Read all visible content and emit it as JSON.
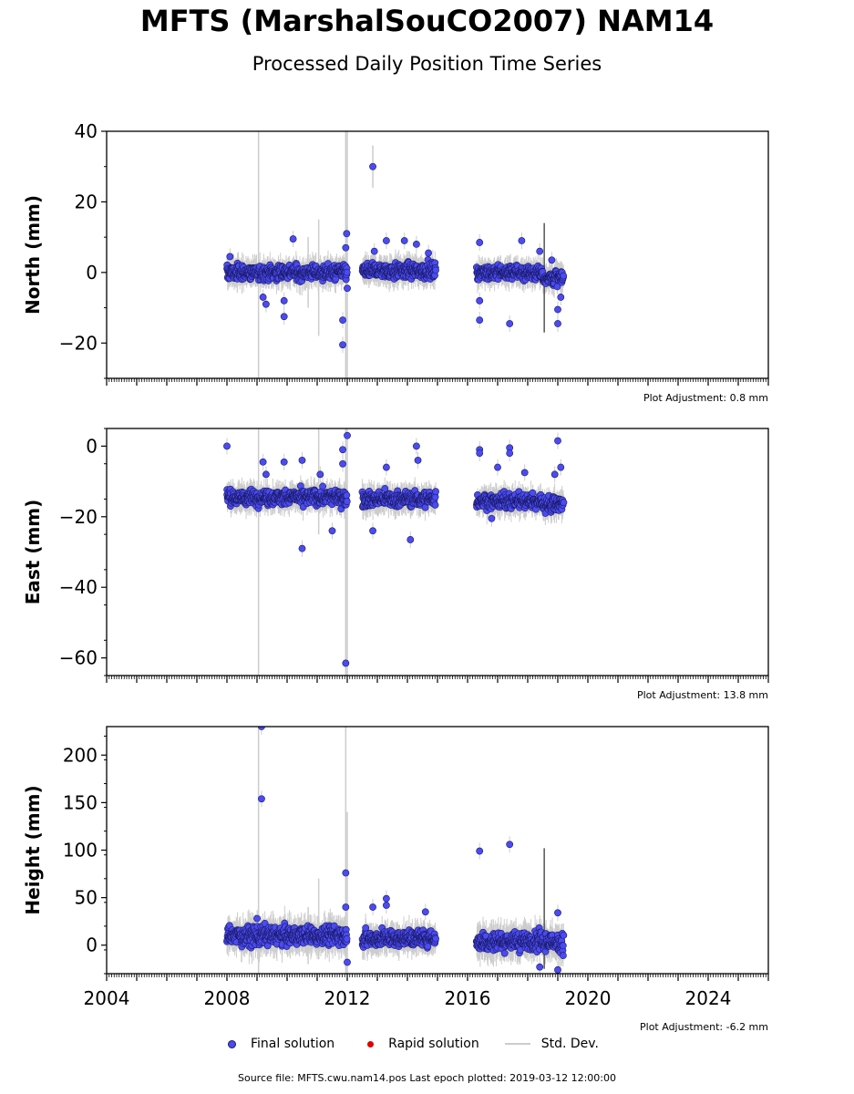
{
  "header": {
    "title": "MFTS (MarshalSouCO2007) NAM14",
    "subtitle": "Processed Daily Position Time Series"
  },
  "legend": {
    "final_label": "Final solution",
    "rapid_label": "Rapid solution",
    "stddev_label": "Std. Dev."
  },
  "footer": {
    "source_text": "Source file: MFTS.cwu.nam14.pos  Last epoch plotted: 2019-03-12 12:00:00"
  },
  "colors": {
    "final": "#4b4bf2",
    "final_edge": "#1a1a66",
    "rapid": "#e00000",
    "stddev": "#cccccc",
    "stddev_dark": "#555555"
  },
  "chart_data": [
    {
      "type": "scatter",
      "ylabel": "North (mm)",
      "xlim": [
        2004,
        2026
      ],
      "ylim": [
        -30,
        40
      ],
      "yticks": [
        -20,
        0,
        20,
        40
      ],
      "adjustment": "Plot Adjustment: 0.8 mm",
      "segments": [
        {
          "start": 2008.0,
          "end": 2012.0,
          "mean": 0,
          "spread": 1.5
        },
        {
          "start": 2012.5,
          "end": 2014.95,
          "mean": 0.5,
          "spread": 1.5
        },
        {
          "start": 2016.3,
          "end": 2018.5,
          "mean": 0,
          "spread": 1.4
        },
        {
          "start": 2018.5,
          "end": 2019.2,
          "mean": -1.5,
          "spread": 1.5
        }
      ],
      "outliers": [
        {
          "x": 2008.1,
          "y": 4.5
        },
        {
          "x": 2009.2,
          "y": -7.0
        },
        {
          "x": 2009.3,
          "y": -9.0
        },
        {
          "x": 2009.9,
          "y": -8.0
        },
        {
          "x": 2009.9,
          "y": -12.5
        },
        {
          "x": 2010.2,
          "y": 9.5
        },
        {
          "x": 2011.85,
          "y": -13.5
        },
        {
          "x": 2011.85,
          "y": -20.5
        },
        {
          "x": 2011.95,
          "y": 7.0
        },
        {
          "x": 2011.98,
          "y": 11.0
        },
        {
          "x": 2012.0,
          "y": -4.5
        },
        {
          "x": 2012.85,
          "y": 30.0
        },
        {
          "x": 2012.9,
          "y": 6.0
        },
        {
          "x": 2013.3,
          "y": 9.0
        },
        {
          "x": 2013.9,
          "y": 9.0
        },
        {
          "x": 2014.3,
          "y": 8.0
        },
        {
          "x": 2014.7,
          "y": 5.5
        },
        {
          "x": 2016.4,
          "y": 8.5
        },
        {
          "x": 2016.4,
          "y": -8.0
        },
        {
          "x": 2016.4,
          "y": -13.5
        },
        {
          "x": 2017.4,
          "y": -14.5
        },
        {
          "x": 2017.8,
          "y": 9.0
        },
        {
          "x": 2018.4,
          "y": 6.0
        },
        {
          "x": 2018.8,
          "y": 3.5
        },
        {
          "x": 2019.0,
          "y": -10.5
        },
        {
          "x": 2019.0,
          "y": -14.5
        },
        {
          "x": 2019.1,
          "y": -7.0
        }
      ],
      "stddev_bars": [
        {
          "x": 2009.05,
          "low": -30,
          "high": 40
        },
        {
          "x": 2011.95,
          "low": -30,
          "high": 40
        },
        {
          "x": 2012.0,
          "low": -30,
          "high": 40
        },
        {
          "x": 2011.05,
          "low": -18,
          "high": 15
        },
        {
          "x": 2010.7,
          "low": -10,
          "high": 10
        },
        {
          "x": 2012.85,
          "low": 24,
          "high": 36
        }
      ],
      "dark_bars": [
        {
          "x": 2018.55,
          "low": -17,
          "high": 14
        }
      ]
    },
    {
      "type": "scatter",
      "ylabel": "East (mm)",
      "xlim": [
        2004,
        2026
      ],
      "ylim": [
        -65,
        5
      ],
      "yticks": [
        -60,
        -40,
        -20,
        0
      ],
      "adjustment": "Plot Adjustment: 13.8 mm",
      "segments": [
        {
          "start": 2008.0,
          "end": 2012.0,
          "mean": -14.5,
          "spread": 1.5
        },
        {
          "start": 2012.5,
          "end": 2014.95,
          "mean": -15,
          "spread": 1.5
        },
        {
          "start": 2016.3,
          "end": 2018.5,
          "mean": -15.5,
          "spread": 1.5
        },
        {
          "start": 2018.5,
          "end": 2019.2,
          "mean": -16.5,
          "spread": 1.5
        }
      ],
      "outliers": [
        {
          "x": 2008.0,
          "y": 0.0
        },
        {
          "x": 2009.2,
          "y": -4.5
        },
        {
          "x": 2009.3,
          "y": -8.0
        },
        {
          "x": 2009.9,
          "y": -4.5
        },
        {
          "x": 2010.5,
          "y": -29.0
        },
        {
          "x": 2010.5,
          "y": -4.0
        },
        {
          "x": 2011.1,
          "y": -8.0
        },
        {
          "x": 2011.5,
          "y": -24.0
        },
        {
          "x": 2011.85,
          "y": -5.0
        },
        {
          "x": 2011.85,
          "y": -1.0
        },
        {
          "x": 2011.95,
          "y": -61.5
        },
        {
          "x": 2012.0,
          "y": 3.0
        },
        {
          "x": 2012.85,
          "y": -24.0
        },
        {
          "x": 2013.3,
          "y": -6.0
        },
        {
          "x": 2014.1,
          "y": -26.5
        },
        {
          "x": 2014.3,
          "y": 0.0
        },
        {
          "x": 2014.35,
          "y": -4.0
        },
        {
          "x": 2016.4,
          "y": -1.0
        },
        {
          "x": 2016.4,
          "y": -2.0
        },
        {
          "x": 2016.8,
          "y": -20.5
        },
        {
          "x": 2017.0,
          "y": -6.0
        },
        {
          "x": 2017.4,
          "y": -0.5
        },
        {
          "x": 2017.4,
          "y": -2.0
        },
        {
          "x": 2017.9,
          "y": -7.5
        },
        {
          "x": 2018.9,
          "y": -8.0
        },
        {
          "x": 2019.0,
          "y": 1.5
        },
        {
          "x": 2019.1,
          "y": -6.0
        }
      ],
      "stddev_bars": [
        {
          "x": 2009.05,
          "low": -65,
          "high": 5
        },
        {
          "x": 2011.95,
          "low": -65,
          "high": 5
        },
        {
          "x": 2012.0,
          "low": -65,
          "high": 5
        },
        {
          "x": 2011.05,
          "low": -25,
          "high": 5
        }
      ],
      "dark_bars": []
    },
    {
      "type": "scatter",
      "ylabel": "Height (mm)",
      "xlim": [
        2004,
        2026
      ],
      "ylim": [
        -30,
        230
      ],
      "yticks": [
        0,
        50,
        100,
        150,
        200
      ],
      "xticks": [
        2004,
        2008,
        2012,
        2016,
        2020,
        2024
      ],
      "adjustment": "Plot Adjustment: -6.2 mm",
      "segments": [
        {
          "start": 2008.0,
          "end": 2012.0,
          "mean": 10,
          "spread": 7
        },
        {
          "start": 2012.5,
          "end": 2014.95,
          "mean": 7,
          "spread": 6
        },
        {
          "start": 2016.3,
          "end": 2018.5,
          "mean": 4,
          "spread": 7
        },
        {
          "start": 2018.5,
          "end": 2019.2,
          "mean": 3,
          "spread": 7
        }
      ],
      "outliers": [
        {
          "x": 2009.15,
          "y": 230.0
        },
        {
          "x": 2009.15,
          "y": 154.0
        },
        {
          "x": 2011.95,
          "y": 76.0
        },
        {
          "x": 2011.95,
          "y": 40.0
        },
        {
          "x": 2012.0,
          "y": -18.0
        },
        {
          "x": 2012.85,
          "y": 40.0
        },
        {
          "x": 2013.3,
          "y": 49.0
        },
        {
          "x": 2013.3,
          "y": 42.0
        },
        {
          "x": 2014.6,
          "y": 35.0
        },
        {
          "x": 2016.4,
          "y": 99.0
        },
        {
          "x": 2017.4,
          "y": 106.0
        },
        {
          "x": 2018.4,
          "y": -23.0
        },
        {
          "x": 2019.0,
          "y": 34.0
        },
        {
          "x": 2019.0,
          "y": -26.0
        },
        {
          "x": 2009.0,
          "y": 28.0
        }
      ],
      "stddev_bars": [
        {
          "x": 2009.05,
          "low": -30,
          "high": 230
        },
        {
          "x": 2011.95,
          "low": -30,
          "high": 230
        },
        {
          "x": 2012.0,
          "low": -30,
          "high": 140
        },
        {
          "x": 2011.05,
          "low": -15,
          "high": 70
        },
        {
          "x": 2010.7,
          "low": -20,
          "high": 40
        }
      ],
      "dark_bars": [
        {
          "x": 2018.55,
          "low": -25,
          "high": 102
        }
      ]
    }
  ]
}
